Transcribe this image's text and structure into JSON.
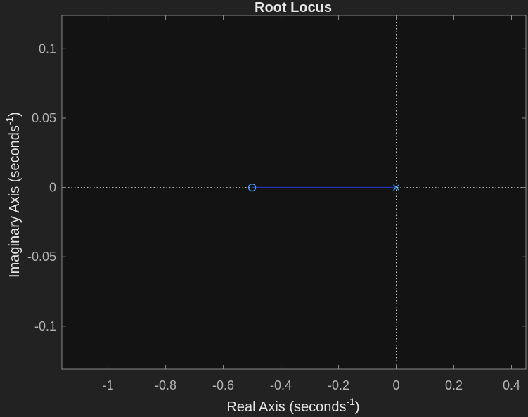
{
  "chart_data": {
    "type": "root-locus",
    "title": "Root Locus",
    "xlabel": "Real Axis (seconds",
    "xlabel_sup": "-1",
    "xlabel_close": ")",
    "ylabel": "Imaginary Axis (seconds",
    "ylabel_sup": "-1",
    "ylabel_close": ")",
    "xlim": [
      -1.16,
      0.45
    ],
    "ylim": [
      -0.131,
      0.124
    ],
    "xticks": [
      {
        "value": -1,
        "label": "-1"
      },
      {
        "value": -0.8,
        "label": "-0.8"
      },
      {
        "value": -0.6,
        "label": "-0.6"
      },
      {
        "value": -0.4,
        "label": "-0.4"
      },
      {
        "value": -0.2,
        "label": "-0.2"
      },
      {
        "value": 0,
        "label": "0"
      },
      {
        "value": 0.2,
        "label": "0.2"
      },
      {
        "value": 0.4,
        "label": "0.4"
      }
    ],
    "yticks": [
      {
        "value": 0.1,
        "label": "0.1"
      },
      {
        "value": 0.05,
        "label": "0.05"
      },
      {
        "value": 0,
        "label": "0"
      },
      {
        "value": -0.05,
        "label": "-0.05"
      },
      {
        "value": -0.1,
        "label": "-0.1"
      }
    ],
    "grid": false,
    "reference_lines": {
      "real_axis": 0,
      "imaginary_axis": 0
    },
    "poles": [
      {
        "re": 0,
        "im": 0
      }
    ],
    "zeros": [
      {
        "re": -0.5,
        "im": 0
      }
    ],
    "branches": [
      {
        "points": [
          {
            "re": 0,
            "im": 0
          },
          {
            "re": -0.5,
            "im": 0
          }
        ]
      }
    ]
  },
  "colors": {
    "figure_bg": "#222222",
    "axes_bg": "#131313",
    "axes_border": "#8a8a8a",
    "tick_text": "#b3b3b3",
    "label_text": "#e6e6e6",
    "title_text": "#e6e6e6",
    "reference_line": "#c8c8c8",
    "locus": "#2233aa",
    "marker": "#4aa3ff"
  }
}
